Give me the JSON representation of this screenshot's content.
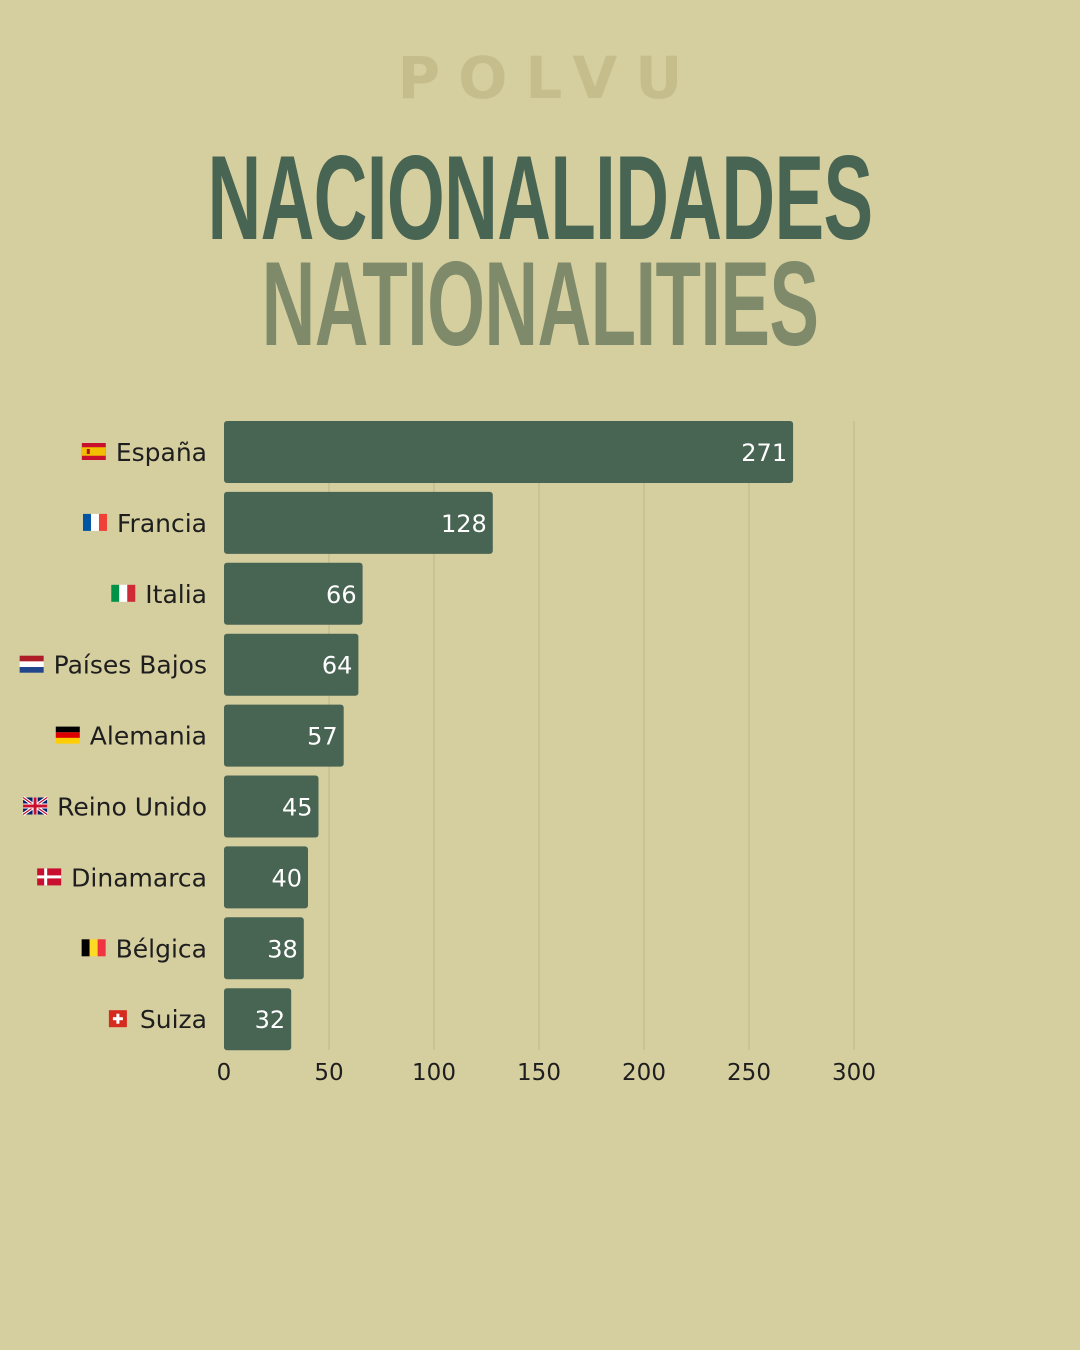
{
  "brand": "POLVU",
  "title_es": "NACIONALIDADES",
  "title_en": "NATIONALITIES",
  "colors": {
    "background": "#d5cfa0",
    "bar": "#486452",
    "title_primary": "#486452",
    "title_secondary": "#7e8a6a",
    "brand": "#c5be8c",
    "grid": "#bcb68c"
  },
  "chart_data": {
    "type": "bar",
    "orientation": "horizontal",
    "categories": [
      "España",
      "Francia",
      "Italia",
      "Países Bajos",
      "Alemania",
      "Reino Unido",
      "Dinamarca",
      "Bélgica",
      "Suiza"
    ],
    "flags": [
      "flag-spain-icon",
      "flag-france-icon",
      "flag-italy-icon",
      "flag-netherlands-icon",
      "flag-germany-icon",
      "flag-uk-icon",
      "flag-denmark-icon",
      "flag-belgium-icon",
      "flag-switzerland-icon"
    ],
    "values": [
      271,
      128,
      66,
      64,
      57,
      45,
      40,
      38,
      32
    ],
    "xticks": [
      "0",
      "50",
      "100",
      "150",
      "200",
      "250",
      "300"
    ],
    "xlim": [
      0,
      300
    ],
    "grid": true,
    "data_labels": true
  }
}
